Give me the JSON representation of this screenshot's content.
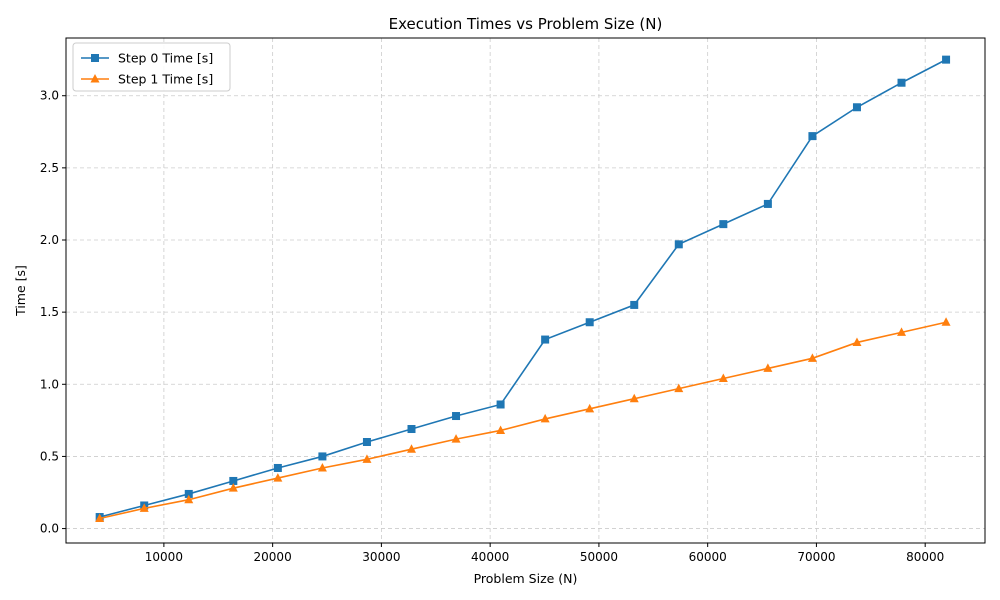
{
  "chart_data": {
    "type": "line",
    "title": "Execution Times vs Problem Size (N)",
    "xlabel": "Problem Size (N)",
    "ylabel": "Time [s]",
    "xlim": [
      1000,
      85500
    ],
    "ylim": [
      -0.1,
      3.4
    ],
    "xticks": [
      10000,
      20000,
      30000,
      40000,
      50000,
      60000,
      70000,
      80000
    ],
    "yticks": [
      0.0,
      0.5,
      1.0,
      1.5,
      2.0,
      2.5,
      3.0
    ],
    "grid": true,
    "legend_position": "top-left",
    "x": [
      4096,
      8192,
      12288,
      16384,
      20480,
      24576,
      28672,
      32768,
      36864,
      40960,
      45056,
      49152,
      53248,
      57344,
      61440,
      65536,
      69632,
      73728,
      77824,
      81920
    ],
    "series": [
      {
        "name": "Step 0 Time [s]",
        "color": "#1f77b4",
        "marker": "square",
        "values": [
          0.08,
          0.16,
          0.24,
          0.33,
          0.42,
          0.5,
          0.6,
          0.69,
          0.78,
          0.86,
          1.31,
          1.43,
          1.55,
          1.97,
          2.11,
          2.25,
          2.72,
          2.92,
          3.09,
          3.25
        ]
      },
      {
        "name": "Step 1 Time [s]",
        "color": "#ff7f0e",
        "marker": "triangle",
        "values": [
          0.07,
          0.14,
          0.2,
          0.28,
          0.35,
          0.42,
          0.48,
          0.55,
          0.62,
          0.68,
          0.76,
          0.83,
          0.9,
          0.97,
          1.04,
          1.11,
          1.18,
          1.29,
          1.36,
          1.43
        ]
      }
    ]
  }
}
